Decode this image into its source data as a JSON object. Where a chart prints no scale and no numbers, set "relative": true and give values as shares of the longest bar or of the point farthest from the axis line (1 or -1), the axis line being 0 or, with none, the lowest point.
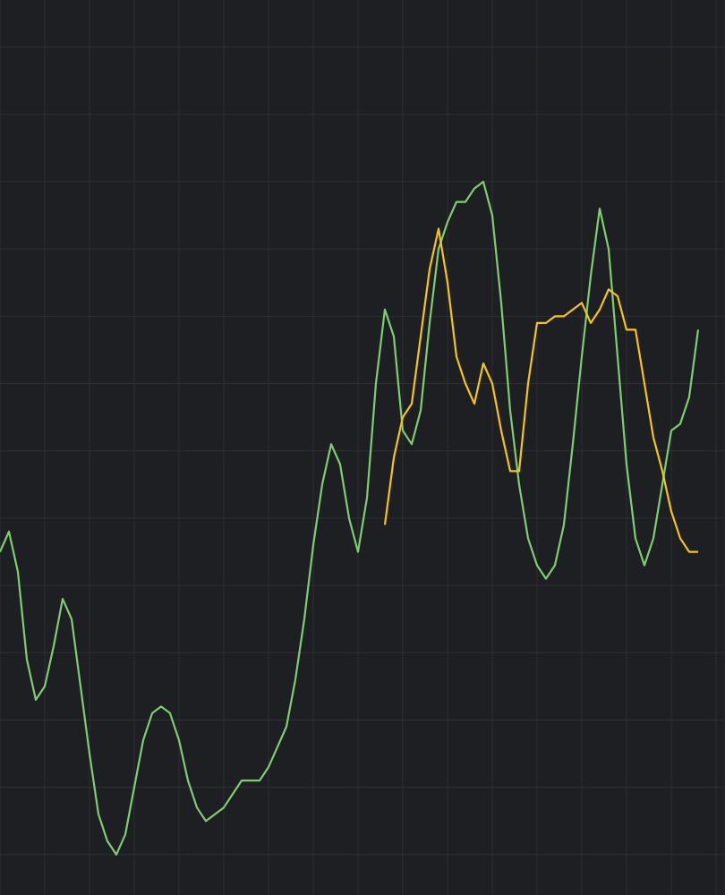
{
  "chart_data": {
    "type": "line",
    "relative": true,
    "grid": true,
    "marker": "none",
    "line_style": "solid",
    "categories": [
      null,
      null,
      null,
      null,
      null,
      null,
      null,
      null,
      null,
      null,
      null,
      null,
      null,
      null,
      null,
      null,
      null,
      null,
      null,
      null,
      null,
      null,
      null,
      null,
      null,
      null,
      null,
      null,
      null,
      null,
      null,
      null,
      null,
      null,
      null,
      null,
      null,
      null,
      null,
      null,
      null,
      null,
      null,
      null,
      null,
      null,
      null,
      null,
      null,
      null,
      null,
      null,
      null,
      null,
      null,
      null,
      null,
      null,
      null,
      null,
      null,
      null,
      null,
      null,
      null,
      null,
      null,
      null,
      null,
      null,
      null,
      null,
      null,
      null,
      null,
      null,
      null,
      null,
      null
    ],
    "series": [
      {
        "color": "#7fcf72",
        "values": [
          0.45,
          0.48,
          0.42,
          0.29,
          0.23,
          0.25,
          0.31,
          0.38,
          0.35,
          0.25,
          0.15,
          0.06,
          0.02,
          0,
          0.03,
          0.1,
          0.17,
          0.21,
          0.22,
          0.21,
          0.17,
          0.11,
          0.07,
          0.05,
          0.06,
          0.07,
          0.09,
          0.11,
          0.11,
          0.11,
          0.13,
          0.16,
          0.19,
          0.26,
          0.35,
          0.46,
          0.55,
          0.61,
          0.58,
          0.5,
          0.45,
          0.53,
          0.7,
          0.81,
          0.77,
          0.63,
          0.61,
          0.66,
          0.79,
          0.9,
          0.94,
          0.97,
          0.97,
          0.99,
          1,
          0.95,
          0.82,
          0.66,
          0.55,
          0.47,
          0.43,
          0.41,
          0.43,
          0.49,
          0.61,
          0.74,
          0.86,
          0.96,
          0.9,
          0.74,
          0.58,
          0.47,
          0.43,
          0.47,
          0.55,
          0.63,
          0.64,
          0.68,
          0.78
        ]
      },
      {
        "color": "#f5c518",
        "values": [
          null,
          null,
          null,
          null,
          null,
          null,
          null,
          null,
          null,
          null,
          null,
          null,
          null,
          null,
          null,
          null,
          null,
          null,
          null,
          null,
          null,
          null,
          null,
          null,
          null,
          null,
          null,
          null,
          null,
          null,
          null,
          null,
          null,
          null,
          null,
          null,
          null,
          null,
          null,
          null,
          null,
          null,
          null,
          0.49,
          0.59,
          0.65,
          0.67,
          0.77,
          0.87,
          0.93,
          0.85,
          0.74,
          0.7,
          0.67,
          0.73,
          0.7,
          0.63,
          0.57,
          0.57,
          0.7,
          0.79,
          0.79,
          0.8,
          0.8,
          0.81,
          0.82,
          0.79,
          0.81,
          0.84,
          0.83,
          0.78,
          0.78,
          0.7,
          0.62,
          0.57,
          0.51,
          0.47,
          0.45,
          0.45
        ]
      }
    ]
  }
}
